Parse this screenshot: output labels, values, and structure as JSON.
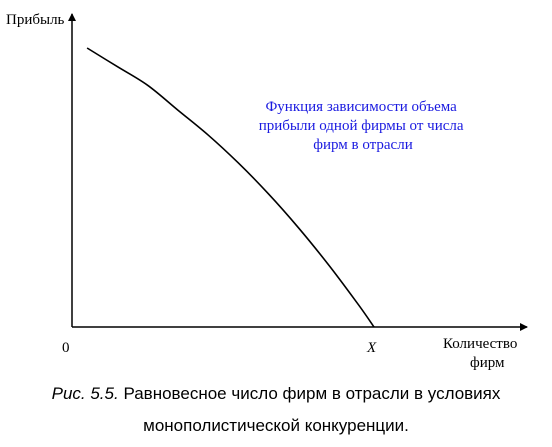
{
  "chart_data": {
    "type": "line",
    "ylabel": "Прибыль",
    "xlabel_lines": [
      "Количество",
      "фирм"
    ],
    "origin_label": "0",
    "x_marker_label": "X",
    "annotation_lines": [
      "Функция зависимости объема",
      "прибыли одной фирмы от числа",
      "фирм в отрасли"
    ],
    "xlim": [
      0,
      1.45
    ],
    "ylim": [
      0,
      1.0
    ],
    "series": [
      {
        "x": [
          0.05,
          0.15,
          0.25,
          0.35,
          0.45,
          0.55,
          0.65,
          0.75,
          0.85,
          0.95,
          1.0
        ],
        "y": [
          0.9,
          0.84,
          0.78,
          0.7,
          0.62,
          0.53,
          0.43,
          0.32,
          0.2,
          0.07,
          0.0
        ]
      }
    ],
    "grid": false,
    "colors": {
      "line": "#000000",
      "annotation": "#1a1ae0"
    }
  },
  "caption": {
    "fig_num": "Рис. 5.5.",
    "line1": " Равновесное число фирм в отрасли в условиях",
    "line2": "монополистической конкуренции."
  }
}
